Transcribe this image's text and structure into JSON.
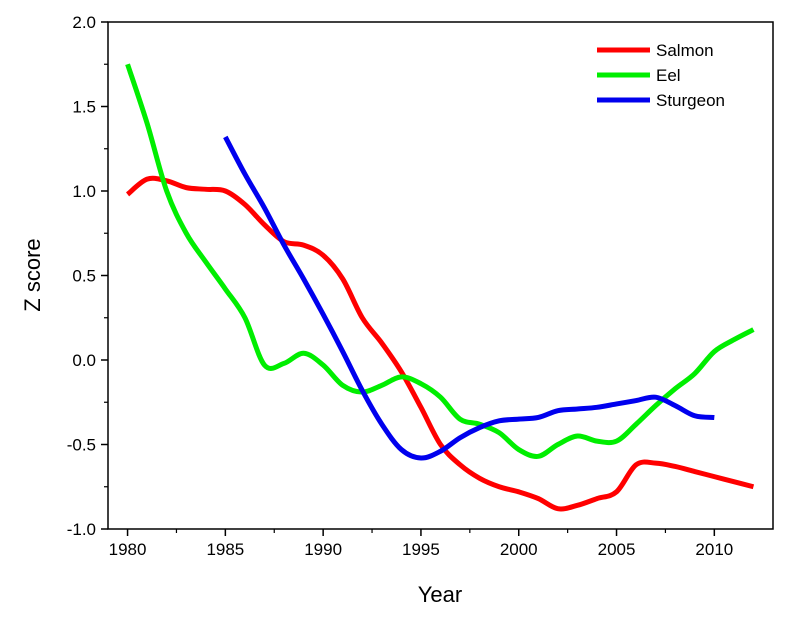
{
  "chart_data": {
    "type": "line",
    "xlabel": "Year",
    "ylabel": "Z score",
    "xlim": [
      1979,
      2013
    ],
    "ylim": [
      -1.0,
      2.0
    ],
    "xticks": [
      1980,
      1985,
      1990,
      1995,
      2000,
      2005,
      2010
    ],
    "xtick_labels": [
      "1980",
      "1985",
      "1990",
      "1995",
      "2000",
      "2005",
      "2010"
    ],
    "yticks": [
      -1.0,
      -0.5,
      0.0,
      0.5,
      1.0,
      1.5,
      2.0
    ],
    "ytick_labels": [
      "-1.0",
      "-0.5",
      "0.0",
      "0.5",
      "1.0",
      "1.5",
      "2.0"
    ],
    "grid": false,
    "legend_position": "top-right",
    "series": [
      {
        "name": "Salmon",
        "color": "#ff0000",
        "x": [
          1980,
          1981,
          1982,
          1983,
          1984,
          1985,
          1986,
          1987,
          1988,
          1989,
          1990,
          1991,
          1992,
          1993,
          1994,
          1995,
          1996,
          1997,
          1998,
          1999,
          2000,
          2001,
          2002,
          2003,
          2004,
          2005,
          2006,
          2007,
          2008,
          2009,
          2010,
          2011,
          2012
        ],
        "y": [
          0.98,
          1.07,
          1.06,
          1.02,
          1.01,
          1.0,
          0.92,
          0.8,
          0.7,
          0.68,
          0.62,
          0.48,
          0.25,
          0.1,
          -0.07,
          -0.28,
          -0.5,
          -0.62,
          -0.7,
          -0.75,
          -0.78,
          -0.82,
          -0.88,
          -0.86,
          -0.82,
          -0.78,
          -0.62,
          -0.61,
          -0.63,
          -0.66,
          -0.69,
          -0.72,
          -0.75
        ]
      },
      {
        "name": "Eel",
        "color": "#00ee00",
        "x": [
          1980,
          1981,
          1982,
          1983,
          1984,
          1985,
          1986,
          1987,
          1988,
          1989,
          1990,
          1991,
          1992,
          1993,
          1994,
          1995,
          1996,
          1997,
          1998,
          1999,
          2000,
          2001,
          2002,
          2003,
          2004,
          2005,
          2006,
          2007,
          2008,
          2009,
          2010,
          2011,
          2012
        ],
        "y": [
          1.75,
          1.4,
          1.0,
          0.75,
          0.58,
          0.42,
          0.25,
          -0.03,
          -0.02,
          0.04,
          -0.03,
          -0.15,
          -0.19,
          -0.15,
          -0.1,
          -0.14,
          -0.22,
          -0.35,
          -0.38,
          -0.43,
          -0.53,
          -0.57,
          -0.5,
          -0.45,
          -0.48,
          -0.48,
          -0.38,
          -0.27,
          -0.17,
          -0.08,
          0.05,
          0.12,
          0.18
        ]
      },
      {
        "name": "Sturgeon",
        "color": "#0000ee",
        "x": [
          1985,
          1986,
          1987,
          1988,
          1989,
          1990,
          1991,
          1992,
          1993,
          1994,
          1995,
          1996,
          1997,
          1998,
          1999,
          2000,
          2001,
          2002,
          2003,
          2004,
          2005,
          2006,
          2007,
          2008,
          2009,
          2010
        ],
        "y": [
          1.32,
          1.1,
          0.9,
          0.68,
          0.48,
          0.27,
          0.05,
          -0.18,
          -0.38,
          -0.53,
          -0.58,
          -0.54,
          -0.46,
          -0.4,
          -0.36,
          -0.35,
          -0.34,
          -0.3,
          -0.29,
          -0.28,
          -0.26,
          -0.24,
          -0.22,
          -0.27,
          -0.33,
          -0.34
        ]
      }
    ]
  }
}
